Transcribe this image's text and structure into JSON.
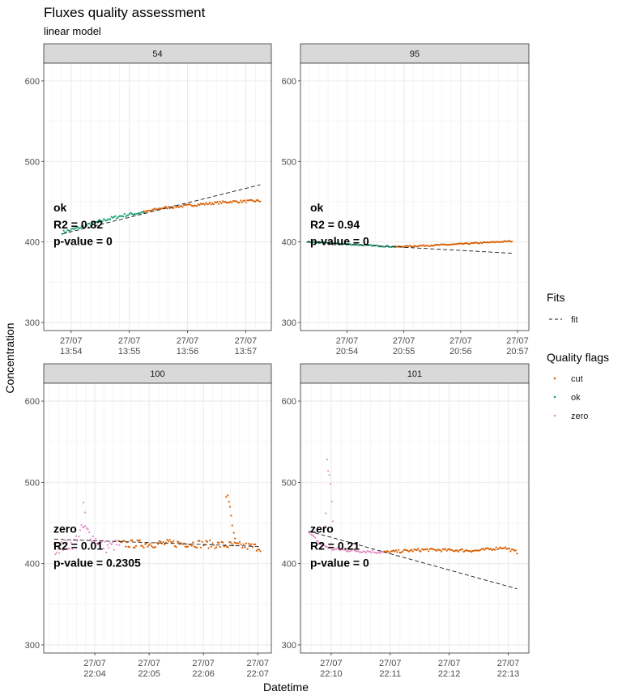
{
  "chart_data": {
    "type": "scatter",
    "title": "Fluxes quality assessment",
    "subtitle": "linear model",
    "xlabel": "Datetime",
    "ylabel": "Concentration",
    "ylim": [
      290,
      622
    ],
    "y_ticks": [
      300,
      400,
      500,
      600
    ],
    "colors": {
      "cut": "#d95f02",
      "ok": "#1b9e77",
      "zero": "#e78ac3",
      "fit": "#1a1a1a"
    },
    "legend": {
      "fits_title": "Fits",
      "fit_label": "fit",
      "flags_title": "Quality flags",
      "flags": [
        "cut",
        "ok",
        "zero"
      ]
    },
    "panels": [
      {
        "label": "54",
        "xlim": [
          13.7,
          17.55
        ],
        "x_ticks": [
          {
            "minute": 14,
            "line1": "27/07",
            "line2": "13:54"
          },
          {
            "minute": 15,
            "line1": "27/07",
            "line2": "13:55"
          },
          {
            "minute": 16,
            "line1": "27/07",
            "line2": "13:56"
          },
          {
            "minute": 17,
            "line1": "27/07",
            "line2": "13:57"
          }
        ],
        "flag": "ok",
        "r2": "R2 = 0.82",
        "pvalue": "p-value = 0",
        "fit": {
          "x0": 13.85,
          "y0": 410,
          "x1": 17.25,
          "y1": 471
        },
        "segments": [
          {
            "flag": "ok",
            "x0": 13.85,
            "x1": 15.25,
            "pts": [
              [
                0,
                412
              ],
              [
                0.25,
                419
              ],
              [
                0.5,
                427
              ],
              [
                0.75,
                433
              ],
              [
                1,
                437
              ]
            ],
            "noise": 2
          },
          {
            "flag": "cut",
            "x0": 15.25,
            "x1": 17.25,
            "pts": [
              [
                0,
                437
              ],
              [
                0.15,
                442
              ],
              [
                0.5,
                447
              ],
              [
                0.75,
                450
              ],
              [
                1,
                451
              ]
            ],
            "noise": 1.5
          }
        ]
      },
      {
        "label": "95",
        "xlim": [
          20.1,
          21.95
        ],
        "x_ticks": [
          {
            "minute": 54,
            "line1": "27/07",
            "line2": "20:54"
          },
          {
            "minute": 55,
            "line1": "27/07",
            "line2": "20:55"
          },
          {
            "minute": 56,
            "line1": "27/07",
            "line2": "20:56"
          },
          {
            "minute": 57,
            "line1": "27/07",
            "line2": "20:57"
          }
        ],
        "xlim_minutes": [
          53.18,
          57.2
        ],
        "flag": "ok",
        "r2": "R2 = 0.94",
        "pvalue": "p-value = 0",
        "fit": {
          "x0": 53.3,
          "y0": 400,
          "x1": 56.9,
          "y1": 386
        },
        "segments": [
          {
            "flag": "ok",
            "x0": 53.3,
            "x1": 54.85,
            "pts": [
              [
                0,
                400
              ],
              [
                0.5,
                397
              ],
              [
                1,
                394
              ]
            ],
            "noise": 0.8
          },
          {
            "flag": "cut",
            "x0": 54.85,
            "x1": 56.9,
            "pts": [
              [
                0,
                394
              ],
              [
                0.5,
                397
              ],
              [
                1,
                401
              ]
            ],
            "noise": 0.8
          }
        ]
      },
      {
        "label": "100",
        "x_ticks": [
          {
            "minute": 4,
            "line1": "27/07",
            "line2": "22:04"
          },
          {
            "minute": 5,
            "line1": "27/07",
            "line2": "22:05"
          },
          {
            "minute": 6,
            "line1": "27/07",
            "line2": "22:06"
          },
          {
            "minute": 7,
            "line1": "27/07",
            "line2": "22:07"
          }
        ],
        "xlim_minutes": [
          3.06,
          7.25
        ],
        "flag": "zero",
        "r2": "R2 = 0.01",
        "pvalue": "p-value = 0.2305",
        "fit": {
          "x0": 3.25,
          "y0": 430,
          "x1": 7.05,
          "y1": 421
        },
        "segments": [
          {
            "flag": "zero",
            "x0": 3.25,
            "x1": 4.45,
            "pts": [
              [
                0,
                418
              ],
              [
                0.3,
                425
              ],
              [
                0.45,
                445
              ],
              [
                0.6,
                432
              ],
              [
                0.8,
                420
              ],
              [
                1,
                424
              ]
            ],
            "noise": 7
          },
          {
            "flag": "cut",
            "x0": 4.45,
            "x1": 7.05,
            "pts": [
              [
                0,
                424
              ],
              [
                0.5,
                425
              ],
              [
                0.85,
                422
              ],
              [
                1,
                420
              ]
            ],
            "noise": 5
          }
        ],
        "extra_points": [
          {
            "flag": "zero",
            "x": 3.79,
            "y": 475
          },
          {
            "flag": "zero",
            "x": 3.82,
            "y": 463
          },
          {
            "flag": "cut",
            "x": 6.42,
            "y": 482
          },
          {
            "flag": "cut",
            "x": 6.45,
            "y": 484
          },
          {
            "flag": "cut",
            "x": 6.47,
            "y": 476
          },
          {
            "flag": "cut",
            "x": 6.49,
            "y": 470
          },
          {
            "flag": "cut",
            "x": 6.51,
            "y": 459
          },
          {
            "flag": "cut",
            "x": 6.53,
            "y": 447
          },
          {
            "flag": "cut",
            "x": 6.56,
            "y": 438
          },
          {
            "flag": "cut",
            "x": 6.58,
            "y": 431
          }
        ]
      },
      {
        "label": "101",
        "x_ticks": [
          {
            "minute": 10,
            "line1": "27/07",
            "line2": "22:10"
          },
          {
            "minute": 11,
            "line1": "27/07",
            "line2": "22:11"
          },
          {
            "minute": 12,
            "line1": "27/07",
            "line2": "22:12"
          },
          {
            "minute": 13,
            "line1": "27/07",
            "line2": "22:13"
          }
        ],
        "xlim_minutes": [
          9.48,
          13.35
        ],
        "flag": "zero",
        "r2": "R2 = 0.21",
        "pvalue": "p-value = 0",
        "fit": {
          "x0": 9.62,
          "y0": 440,
          "x1": 13.15,
          "y1": 369
        },
        "segments": [
          {
            "flag": "zero",
            "x0": 9.62,
            "x1": 10.9,
            "pts": [
              [
                0,
                438
              ],
              [
                0.15,
                425
              ],
              [
                0.3,
                418
              ],
              [
                0.6,
                416
              ],
              [
                1,
                414
              ]
            ],
            "noise": 2
          },
          {
            "flag": "cut",
            "x0": 10.9,
            "x1": 13.15,
            "pts": [
              [
                0,
                414
              ],
              [
                0.3,
                417
              ],
              [
                0.7,
                416
              ],
              [
                0.9,
                420
              ],
              [
                1,
                414
              ]
            ],
            "noise": 1.8
          }
        ],
        "extra_points": [
          {
            "flag": "zero",
            "x": 9.93,
            "y": 528
          },
          {
            "flag": "zero",
            "x": 9.95,
            "y": 514
          },
          {
            "flag": "zero",
            "x": 9.97,
            "y": 509
          },
          {
            "flag": "zero",
            "x": 9.99,
            "y": 498
          },
          {
            "flag": "zero",
            "x": 10.01,
            "y": 476
          },
          {
            "flag": "zero",
            "x": 9.91,
            "y": 462
          },
          {
            "flag": "zero",
            "x": 10.03,
            "y": 452
          },
          {
            "flag": "zero",
            "x": 9.9,
            "y": 446
          }
        ]
      }
    ]
  }
}
